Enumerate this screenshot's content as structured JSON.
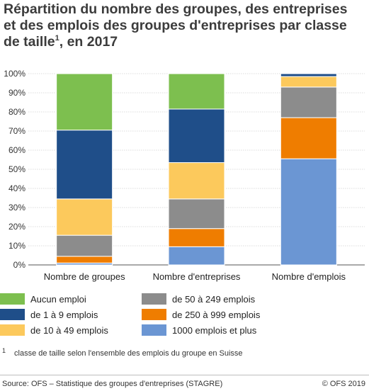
{
  "title_line1": "Répartition du nombre des groupes, des entreprises",
  "title_line2": "et des emplois des groupes d'entreprises par classe",
  "title_line3_a": "de taille",
  "title_line3_sup": "1",
  "title_line3_b": ", en 2017",
  "footnote_number": "1",
  "footnote_text": "classe de taille selon l'ensemble des emplois du groupe en Suisse",
  "source": "Source: OFS – Statistique des groupes d'entreprises (STAGRE)",
  "copyright": "© OFS 2019",
  "chart_data": {
    "type": "bar",
    "stacked": true,
    "categories": [
      "Nombre de groupes",
      "Nombre d'entreprises",
      "Nombre d'emplois"
    ],
    "y_ticks": [
      "0%",
      "10%",
      "20%",
      "30%",
      "40%",
      "50%",
      "60%",
      "70%",
      "80%",
      "90%",
      "100%"
    ],
    "ylim": [
      0,
      100
    ],
    "grid": true,
    "legend_position": "bottom",
    "series": [
      {
        "name": "1000 emplois et plus",
        "color": "#6b96d3",
        "values": [
          1,
          9.5,
          55.5
        ]
      },
      {
        "name": "de 250 à 999 emplois",
        "color": "#ef7d00",
        "values": [
          3.5,
          9.5,
          21.5
        ]
      },
      {
        "name": "de 50 à 249 emplois",
        "color": "#8c8c8c",
        "values": [
          11,
          15.5,
          16
        ]
      },
      {
        "name": "de 10 à 49 emplois",
        "color": "#fcc95c",
        "values": [
          19,
          19,
          5.5
        ]
      },
      {
        "name": "de 1 à 9 emplois",
        "color": "#1f4e89",
        "values": [
          36,
          28,
          1.5
        ]
      },
      {
        "name": "Aucun emploi",
        "color": "#7dbf4f",
        "values": [
          29.5,
          18.5,
          0
        ]
      }
    ]
  },
  "legend": [
    {
      "label": "Aucun emploi",
      "color": "#7dbf4f"
    },
    {
      "label": "de 1 à 9 emplois",
      "color": "#1f4e89"
    },
    {
      "label": "de 10 à 49 emplois",
      "color": "#fcc95c"
    },
    {
      "label": "de 50 à 249 emplois",
      "color": "#8c8c8c"
    },
    {
      "label": "de 250 à 999 emplois",
      "color": "#ef7d00"
    },
    {
      "label": "1000 emplois et plus",
      "color": "#6b96d3"
    }
  ]
}
